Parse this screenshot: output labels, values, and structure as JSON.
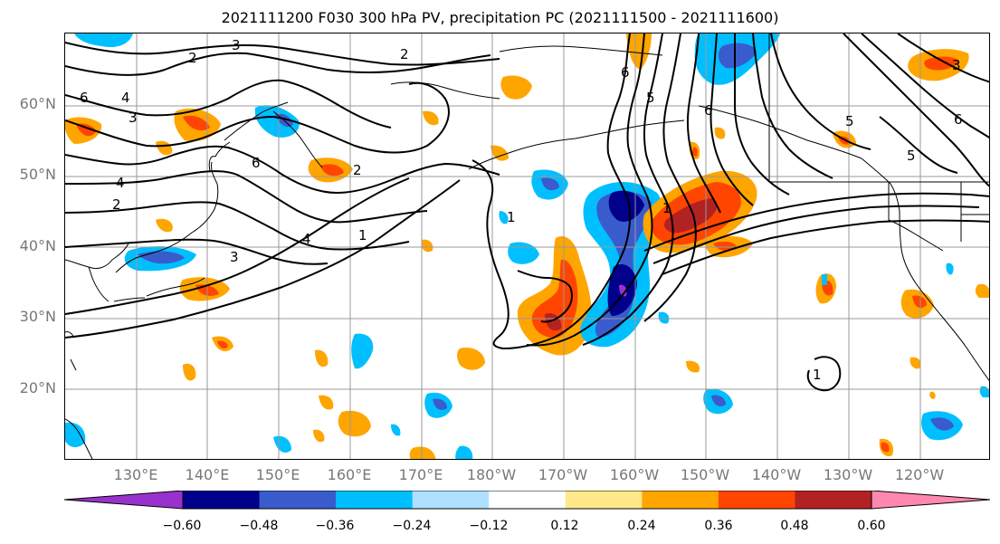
{
  "title": "2021111200 F030 300 hPa PV, precipitation PC (2021111500 - 2021111600)",
  "lat_labels": [
    "60°N",
    "50°N",
    "40°N",
    "30°N",
    "20°N"
  ],
  "lon_labels": [
    "130°E",
    "140°E",
    "150°E",
    "160°E",
    "170°E",
    "180°W",
    "170°W",
    "160°W",
    "150°W",
    "140°W",
    "130°W",
    "120°W"
  ],
  "colorbar": {
    "ticks": [
      "−0.60",
      "−0.48",
      "−0.36",
      "−0.24",
      "−0.12",
      "0.12",
      "0.24",
      "0.36",
      "0.48",
      "0.60"
    ],
    "colors": [
      "#9932cc",
      "#00008b",
      "#3a5bcc",
      "#00bfff",
      "#b0e0ff",
      "#ffffff",
      "#ffe98a",
      "#ffa500",
      "#ff4500",
      "#b22222",
      "#ff88b0"
    ]
  },
  "contour_labels": [
    "2",
    "3",
    "4",
    "5",
    "6",
    "1"
  ],
  "colors": {
    "grid": "#999999",
    "contour": "#000000",
    "coast": "#000000"
  }
}
